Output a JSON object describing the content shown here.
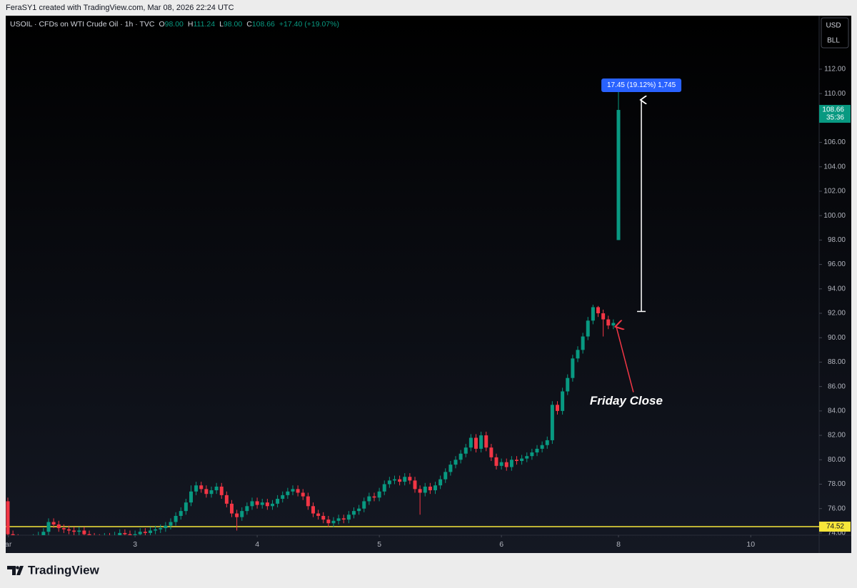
{
  "header": "FeraSY1 created with TradingView.com, Mar 08, 2026 22:24 UTC",
  "brand": "TradingView",
  "currency": "USD",
  "unit": "BLL",
  "chart_data": {
    "type": "candlestick",
    "title": "USOIL · CFDs on WTI Crude Oil · 1h · TVC",
    "ohlc_legend": [
      {
        "key": "O",
        "value": "98.00"
      },
      {
        "key": "H",
        "value": "111.24"
      },
      {
        "key": "L",
        "value": "98.00"
      },
      {
        "key": "C",
        "value": "108.66"
      }
    ],
    "change": "+17.40 (+19.07%)",
    "up_color": "#089981",
    "down_color": "#f23645",
    "open": [
      76.6,
      73.9,
      73.6,
      73.4,
      73.5,
      73.3,
      73.6,
      73.8,
      74.1,
      74.9,
      74.7,
      74.4,
      74.3,
      74.2,
      74.1,
      74.2,
      73.9,
      73.7,
      73.6,
      73.5,
      73.7,
      73.6,
      73.8,
      74.0,
      73.9,
      73.8,
      73.9,
      74.1,
      74.0,
      74.2,
      74.3,
      74.4,
      74.6,
      74.9,
      75.4,
      75.8,
      76.5,
      77.4,
      77.9,
      77.6,
      77.2,
      77.5,
      77.8,
      77.1,
      76.4,
      75.6,
      75.3,
      75.8,
      76.2,
      76.6,
      76.3,
      76.5,
      76.2,
      76.4,
      76.8,
      77.1,
      77.4,
      77.6,
      77.3,
      77.0,
      76.2,
      75.6,
      75.4,
      75.1,
      74.8,
      75.0,
      75.2,
      75.1,
      75.5,
      75.8,
      76.0,
      76.6,
      77.0,
      76.9,
      77.4,
      78.0,
      78.3,
      78.4,
      78.2,
      78.6,
      78.3,
      77.6,
      77.3,
      77.8,
      77.5,
      77.9,
      78.4,
      79.0,
      79.6,
      80.0,
      80.5,
      81.0,
      81.8,
      80.9,
      82.0,
      81.0,
      80.2,
      79.5,
      79.8,
      79.4,
      80.0,
      79.9,
      80.1,
      80.3,
      80.6,
      80.9,
      81.2,
      81.6,
      84.5,
      84.0,
      85.6,
      86.7,
      88.3,
      89.0,
      90.1,
      91.4,
      92.5,
      92.0,
      91.5,
      91.0,
      98.0
    ],
    "high": [
      76.9,
      74.2,
      73.9,
      73.8,
      73.8,
      73.9,
      74.1,
      74.4,
      75.2,
      75.2,
      75.0,
      74.7,
      74.6,
      74.5,
      74.5,
      74.5,
      74.2,
      74.0,
      73.9,
      74.0,
      74.0,
      74.1,
      74.3,
      74.3,
      74.2,
      74.2,
      74.4,
      74.4,
      74.5,
      74.6,
      74.7,
      74.9,
      75.2,
      75.7,
      76.1,
      76.8,
      77.9,
      78.2,
      78.2,
      77.9,
      77.8,
      78.1,
      78.1,
      77.4,
      76.7,
      75.9,
      76.1,
      76.5,
      76.9,
      76.9,
      76.8,
      76.8,
      76.7,
      77.1,
      77.4,
      77.7,
      77.9,
      77.9,
      77.6,
      77.3,
      76.5,
      75.9,
      75.7,
      75.4,
      75.3,
      75.5,
      75.5,
      75.8,
      76.1,
      76.3,
      76.9,
      77.3,
      77.3,
      77.7,
      78.3,
      78.6,
      78.7,
      78.7,
      78.9,
      78.9,
      78.6,
      77.9,
      78.1,
      78.1,
      78.2,
      78.7,
      79.3,
      79.9,
      80.3,
      80.8,
      81.3,
      82.1,
      82.1,
      82.3,
      82.3,
      81.3,
      80.5,
      80.1,
      80.1,
      80.3,
      80.3,
      80.4,
      80.6,
      80.9,
      81.2,
      81.5,
      81.9,
      84.8,
      84.8,
      85.9,
      87.0,
      88.6,
      89.3,
      90.4,
      91.7,
      92.7,
      92.6,
      92.3,
      91.8,
      91.5,
      111.24
    ],
    "low": [
      73.6,
      73.3,
      73.1,
      73.1,
      73.0,
      73.0,
      73.3,
      73.5,
      73.8,
      74.4,
      74.1,
      74.0,
      73.9,
      73.8,
      73.8,
      73.6,
      73.4,
      73.3,
      73.2,
      73.2,
      73.3,
      73.3,
      73.5,
      73.6,
      73.5,
      73.5,
      73.6,
      73.7,
      73.7,
      73.9,
      74.0,
      74.1,
      74.3,
      74.6,
      75.1,
      75.5,
      76.2,
      77.1,
      77.3,
      76.9,
      76.9,
      77.2,
      76.8,
      76.1,
      75.3,
      74.2,
      75.0,
      75.5,
      75.9,
      76.0,
      76.0,
      75.9,
      75.9,
      76.1,
      76.5,
      76.8,
      77.1,
      77.0,
      76.7,
      75.9,
      75.3,
      75.1,
      74.8,
      74.5,
      74.5,
      74.7,
      74.8,
      74.8,
      75.2,
      75.5,
      75.7,
      76.3,
      76.6,
      76.6,
      77.1,
      77.7,
      78.0,
      77.9,
      77.9,
      78.0,
      77.3,
      75.5,
      77.0,
      77.2,
      77.2,
      77.6,
      78.1,
      78.7,
      79.3,
      79.7,
      80.2,
      80.7,
      80.6,
      80.6,
      80.7,
      79.9,
      79.2,
      79.2,
      79.1,
      79.1,
      79.6,
      79.6,
      79.8,
      80.0,
      80.3,
      80.6,
      80.9,
      81.3,
      83.7,
      83.7,
      85.3,
      86.4,
      88.0,
      88.7,
      89.8,
      91.1,
      91.7,
      90.1,
      90.7,
      90.7,
      98.0
    ],
    "close": [
      73.9,
      73.6,
      73.4,
      73.5,
      73.3,
      73.6,
      73.8,
      74.1,
      74.9,
      74.7,
      74.4,
      74.3,
      74.2,
      74.1,
      74.2,
      73.9,
      73.7,
      73.6,
      73.5,
      73.7,
      73.6,
      73.8,
      74.0,
      73.9,
      73.8,
      73.9,
      74.1,
      74.0,
      74.2,
      74.3,
      74.4,
      74.6,
      74.9,
      75.4,
      75.8,
      76.5,
      77.4,
      77.9,
      77.6,
      77.2,
      77.5,
      77.8,
      77.1,
      76.4,
      75.6,
      75.3,
      75.8,
      76.2,
      76.6,
      76.3,
      76.5,
      76.2,
      76.4,
      76.8,
      77.1,
      77.4,
      77.6,
      77.3,
      77.0,
      76.2,
      75.6,
      75.4,
      75.1,
      74.8,
      75.0,
      75.2,
      75.1,
      75.5,
      75.8,
      76.0,
      76.6,
      77.0,
      76.9,
      77.4,
      78.0,
      78.3,
      78.4,
      78.2,
      78.6,
      78.3,
      77.6,
      77.3,
      77.8,
      77.5,
      77.9,
      78.4,
      79.0,
      79.6,
      80.0,
      80.5,
      81.0,
      81.8,
      80.9,
      82.0,
      81.0,
      80.2,
      79.5,
      79.8,
      79.4,
      80.0,
      79.9,
      80.1,
      80.3,
      80.6,
      80.9,
      81.2,
      81.6,
      84.5,
      84.0,
      85.6,
      86.7,
      88.3,
      89.0,
      90.1,
      91.4,
      92.5,
      92.0,
      91.5,
      91.0,
      91.21,
      108.66
    ],
    "xlim": [
      -0.42,
      159.44
    ],
    "xticks": [
      {
        "value": 0.1,
        "label": "ar"
      },
      {
        "value": 25,
        "label": "3"
      },
      {
        "value": 49,
        "label": "4"
      },
      {
        "value": 73,
        "label": "5"
      },
      {
        "value": 97,
        "label": "6"
      },
      {
        "value": 120,
        "label": "8"
      },
      {
        "value": 146,
        "label": "10"
      }
    ],
    "ylim": [
      73.82,
      116.38
    ],
    "yticks": [
      {
        "value": 74,
        "label": "74.00"
      },
      {
        "value": 76,
        "label": "76.00"
      },
      {
        "value": 78,
        "label": "78.00"
      },
      {
        "value": 80,
        "label": "80.00"
      },
      {
        "value": 82,
        "label": "82.00"
      },
      {
        "value": 84,
        "label": "84.00"
      },
      {
        "value": 86,
        "label": "86.00"
      },
      {
        "value": 88,
        "label": "88.00"
      },
      {
        "value": 90,
        "label": "90.00"
      },
      {
        "value": 92,
        "label": "92.00"
      },
      {
        "value": 94,
        "label": "94.00"
      },
      {
        "value": 96,
        "label": "96.00"
      },
      {
        "value": 98,
        "label": "98.00"
      },
      {
        "value": 100,
        "label": "100.00"
      },
      {
        "value": 102,
        "label": "102.00"
      },
      {
        "value": 104,
        "label": "104.00"
      },
      {
        "value": 106,
        "label": "106.00"
      },
      {
        "value": 108,
        "label": "108.00"
      },
      {
        "value": 110,
        "label": "110.00"
      },
      {
        "value": 112,
        "label": "112.00"
      }
    ],
    "grid": false,
    "hline": {
      "value": 74.52,
      "color": "#f7e63a"
    },
    "last_price": 108.66,
    "countdown": "35:36",
    "measure": {
      "from": 92.15,
      "to": 109.6,
      "label": "17.45 (19.12%) 1,745",
      "color": "#2962ff"
    },
    "annotation": {
      "text": "Friday Close",
      "color": "#f23645"
    }
  }
}
